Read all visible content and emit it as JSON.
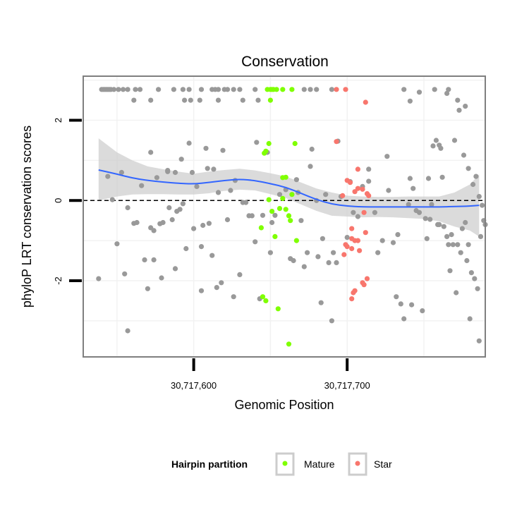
{
  "chart_data": {
    "type": "scatter",
    "title": "Conservation",
    "xlabel": "Genomic Position",
    "ylabel": "phyloP LRT conservation scores",
    "xlim": [
      30717528,
      30717790
    ],
    "ylim": [
      -3.9,
      3.1
    ],
    "x_ticks": [
      {
        "value": 30717600,
        "label": "30,717,600"
      },
      {
        "value": 30717700,
        "label": "30,717,700"
      }
    ],
    "y_ticks": [
      {
        "value": -2,
        "label": "-2"
      },
      {
        "value": 0,
        "label": "0"
      },
      {
        "value": 2,
        "label": "2"
      }
    ],
    "y_minor_gridlines": [
      -3,
      -1,
      1,
      3
    ],
    "x_minor_gridlines": [
      30717550,
      30717650,
      30717750
    ],
    "reference_line": {
      "y": 0,
      "style": "dashed"
    },
    "colors": {
      "background_point": "#999999",
      "Mature": "#7FFF00",
      "Star": "#F8766D",
      "smooth_line": "#3366FF",
      "ribbon": "#cccccc",
      "panel_border": "#7f7f7f",
      "grid": "#f2f2f2"
    },
    "legend": {
      "title": "Hairpin partition",
      "placement": "bottom",
      "entries": [
        {
          "name": "Mature",
          "color": "#7FFF00"
        },
        {
          "name": "Star",
          "color": "#F8766D"
        }
      ]
    },
    "smooth": {
      "x": [
        30717538,
        30717550,
        30717560,
        30717570,
        30717580,
        30717590,
        30717600,
        30717610,
        30717620,
        30717630,
        30717640,
        30717650,
        30717660,
        30717670,
        30717680,
        30717690,
        30717700,
        30717710,
        30717720,
        30717730,
        30717740,
        30717750,
        30717760,
        30717770,
        30717780,
        30717786
      ],
      "fit": [
        0.76,
        0.66,
        0.56,
        0.5,
        0.46,
        0.43,
        0.41,
        0.45,
        0.5,
        0.53,
        0.5,
        0.42,
        0.33,
        0.18,
        0.02,
        -0.09,
        -0.14,
        -0.16,
        -0.16,
        -0.16,
        -0.16,
        -0.16,
        -0.16,
        -0.15,
        -0.14,
        -0.12
      ],
      "upper": [
        1.55,
        1.2,
        1.0,
        0.85,
        0.78,
        0.72,
        0.67,
        0.72,
        0.76,
        0.79,
        0.75,
        0.68,
        0.6,
        0.45,
        0.3,
        0.2,
        0.12,
        0.1,
        0.09,
        0.09,
        0.1,
        0.1,
        0.1,
        0.2,
        0.4,
        0.65
      ],
      "lower": [
        0.0,
        0.1,
        0.15,
        0.16,
        0.16,
        0.15,
        0.15,
        0.18,
        0.24,
        0.27,
        0.25,
        0.16,
        0.06,
        -0.1,
        -0.26,
        -0.38,
        -0.4,
        -0.42,
        -0.41,
        -0.42,
        -0.44,
        -0.46,
        -0.52,
        -0.65,
        -0.75,
        -0.9
      ]
    },
    "series": [
      {
        "name": "Other",
        "color": "#999999",
        "points": [
          [
            30717540,
            2.77
          ],
          [
            30717541,
            2.77
          ],
          [
            30717542,
            2.77
          ],
          [
            30717543,
            2.77
          ],
          [
            30717544,
            2.77
          ],
          [
            30717545,
            2.77
          ],
          [
            30717546,
            2.77
          ],
          [
            30717548,
            2.77
          ],
          [
            30717551,
            2.77
          ],
          [
            30717554,
            2.77
          ],
          [
            30717557,
            2.77
          ],
          [
            30717562,
            2.77
          ],
          [
            30717565,
            2.77
          ],
          [
            30717577,
            2.77
          ],
          [
            30717587,
            2.77
          ],
          [
            30717593,
            2.77
          ],
          [
            30717597,
            2.77
          ],
          [
            30717605,
            2.77
          ],
          [
            30717612,
            2.77
          ],
          [
            30717614,
            2.77
          ],
          [
            30717616,
            2.77
          ],
          [
            30717620,
            2.77
          ],
          [
            30717622,
            2.77
          ],
          [
            30717626,
            2.77
          ],
          [
            30717630,
            2.77
          ],
          [
            30717640,
            2.77
          ],
          [
            30717672,
            2.77
          ],
          [
            30717676,
            2.77
          ],
          [
            30717680,
            2.77
          ],
          [
            30717690,
            2.77
          ],
          [
            30717737,
            2.77
          ],
          [
            30717757,
            2.77
          ],
          [
            30717766,
            2.77
          ],
          [
            30717561,
            2.5
          ],
          [
            30717572,
            2.5
          ],
          [
            30717594,
            2.5
          ],
          [
            30717598,
            2.5
          ],
          [
            30717604,
            2.5
          ],
          [
            30717616,
            2.5
          ],
          [
            30717632,
            2.5
          ],
          [
            30717642,
            2.5
          ],
          [
            30717772,
            2.5
          ],
          [
            30717773,
            2.25
          ],
          [
            30717741,
            2.48
          ],
          [
            30717747,
            2.7
          ],
          [
            30717777,
            2.35
          ],
          [
            30717765,
            2.67
          ],
          [
            30717538,
            -1.95
          ],
          [
            30717544,
            0.6
          ],
          [
            30717547,
            0.02
          ],
          [
            30717550,
            -1.08
          ],
          [
            30717553,
            0.7
          ],
          [
            30717555,
            -1.83
          ],
          [
            30717557,
            -3.25
          ],
          [
            30717557,
            -0.18
          ],
          [
            30717561,
            -0.57
          ],
          [
            30717563,
            -0.55
          ],
          [
            30717566,
            0.37
          ],
          [
            30717568,
            -1.48
          ],
          [
            30717570,
            -2.2
          ],
          [
            30717572,
            1.2
          ],
          [
            30717572,
            -0.68
          ],
          [
            30717574,
            -1.48
          ],
          [
            30717574,
            -0.75
          ],
          [
            30717576,
            0.57
          ],
          [
            30717578,
            -0.58
          ],
          [
            30717579,
            -1.93
          ],
          [
            30717580,
            -0.55
          ],
          [
            30717583,
            0.75
          ],
          [
            30717583,
            0.72
          ],
          [
            30717584,
            -0.18
          ],
          [
            30717586,
            -0.48
          ],
          [
            30717588,
            -1.7
          ],
          [
            30717588,
            0.7
          ],
          [
            30717589,
            -0.27
          ],
          [
            30717591,
            -0.22
          ],
          [
            30717592,
            1.03
          ],
          [
            30717593,
            -0.08
          ],
          [
            30717595,
            -1.2
          ],
          [
            30717597,
            1.43
          ],
          [
            30717599,
            0.7
          ],
          [
            30717600,
            -0.7
          ],
          [
            30717602,
            0.35
          ],
          [
            30717605,
            -2.25
          ],
          [
            30717605,
            -1.15
          ],
          [
            30717606,
            -0.62
          ],
          [
            30717608,
            1.3
          ],
          [
            30717609,
            0.8
          ],
          [
            30717610,
            -0.57
          ],
          [
            30717612,
            -1.37
          ],
          [
            30717613,
            0.78
          ],
          [
            30717615,
            -2.17
          ],
          [
            30717616,
            0.2
          ],
          [
            30717618,
            -2.05
          ],
          [
            30717619,
            1.25
          ],
          [
            30717622,
            -0.48
          ],
          [
            30717624,
            0.25
          ],
          [
            30717626,
            -2.4
          ],
          [
            30717627,
            0.5
          ],
          [
            30717630,
            -1.85
          ],
          [
            30717632,
            -0.05
          ],
          [
            30717634,
            -0.05
          ],
          [
            30717636,
            -0.38
          ],
          [
            30717638,
            -0.38
          ],
          [
            30717640,
            -1.03
          ],
          [
            30717641,
            1.45
          ],
          [
            30717643,
            -2.45
          ],
          [
            30717645,
            -0.37
          ],
          [
            30717648,
            1.2
          ],
          [
            30717650,
            -1.3
          ],
          [
            30717651,
            -0.55
          ],
          [
            30717653,
            -0.37
          ],
          [
            30717656,
            0.15
          ],
          [
            30717660,
            0.27
          ],
          [
            30717663,
            -1.45
          ],
          [
            30717665,
            -1.5
          ],
          [
            30717667,
            0.52
          ],
          [
            30717668,
            0.2
          ],
          [
            30717670,
            -0.5
          ],
          [
            30717672,
            -1.65
          ],
          [
            30717674,
            -1.3
          ],
          [
            30717676,
            0.85
          ],
          [
            30717677,
            1.28
          ],
          [
            30717680,
            0.0
          ],
          [
            30717681,
            -1.4
          ],
          [
            30717683,
            -2.55
          ],
          [
            30717684,
            -0.95
          ],
          [
            30717686,
            0.15
          ],
          [
            30717688,
            -1.55
          ],
          [
            30717690,
            -3.0
          ],
          [
            30717691,
            -1.3
          ],
          [
            30717693,
            -1.55
          ],
          [
            30717694,
            1.48
          ],
          [
            30717696,
            0.1
          ],
          [
            30717700,
            -0.92
          ],
          [
            30717702,
            0.47
          ],
          [
            30717704,
            -0.3
          ],
          [
            30717707,
            -0.4
          ],
          [
            30717710,
            0.35
          ],
          [
            30717714,
            0.48
          ],
          [
            30717714,
            0.78
          ],
          [
            30717718,
            -0.3
          ],
          [
            30717720,
            -1.3
          ],
          [
            30717723,
            -1.0
          ],
          [
            30717726,
            1.1
          ],
          [
            30717727,
            0.25
          ],
          [
            30717730,
            -1.05
          ],
          [
            30717732,
            -2.4
          ],
          [
            30717733,
            -0.85
          ],
          [
            30717735,
            -2.58
          ],
          [
            30717737,
            -2.95
          ],
          [
            30717740,
            -0.1
          ],
          [
            30717741,
            0.55
          ],
          [
            30717742,
            -2.6
          ],
          [
            30717743,
            0.3
          ],
          [
            30717745,
            -0.25
          ],
          [
            30717747,
            -0.3
          ],
          [
            30717749,
            -2.75
          ],
          [
            30717751,
            -0.45
          ],
          [
            30717752,
            -0.95
          ],
          [
            30717753,
            0.55
          ],
          [
            30717754,
            -0.47
          ],
          [
            30717755,
            -0.1
          ],
          [
            30717756,
            1.36
          ],
          [
            30717758,
            1.5
          ],
          [
            30717759,
            -0.6
          ],
          [
            30717760,
            -0.6
          ],
          [
            30717760,
            1.38
          ],
          [
            30717761,
            1.3
          ],
          [
            30717762,
            0.58
          ],
          [
            30717763,
            -0.65
          ],
          [
            30717765,
            -0.9
          ],
          [
            30717766,
            -1.1
          ],
          [
            30717767,
            -1.75
          ],
          [
            30717768,
            -0.85
          ],
          [
            30717769,
            -1.1
          ],
          [
            30717770,
            1.5
          ],
          [
            30717771,
            -2.3
          ],
          [
            30717772,
            -1.1
          ],
          [
            30717774,
            -1.3
          ],
          [
            30717775,
            -0.7
          ],
          [
            30717776,
            1.13
          ],
          [
            30717777,
            -0.55
          ],
          [
            30717778,
            -1.5
          ],
          [
            30717779,
            -1.1
          ],
          [
            30717779,
            0.8
          ],
          [
            30717780,
            -2.95
          ],
          [
            30717781,
            -1.8
          ],
          [
            30717782,
            0.4
          ],
          [
            30717783,
            -1.95
          ],
          [
            30717784,
            0.6
          ],
          [
            30717785,
            -2.2
          ],
          [
            30717786,
            -3.5
          ],
          [
            30717786,
            0.1
          ],
          [
            30717787,
            -0.9
          ],
          [
            30717788,
            -0.12
          ],
          [
            30717789,
            -0.5
          ],
          [
            30717790,
            -0.6
          ]
        ]
      },
      {
        "name": "Mature",
        "color": "#7FFF00",
        "points": [
          [
            30717648,
            2.77
          ],
          [
            30717650,
            2.77
          ],
          [
            30717651,
            2.77
          ],
          [
            30717652,
            2.77
          ],
          [
            30717654,
            2.77
          ],
          [
            30717658,
            2.77
          ],
          [
            30717664,
            2.77
          ],
          [
            30717650,
            2.5
          ],
          [
            30717649,
            1.42
          ],
          [
            30717647,
            1.23
          ],
          [
            30717646,
            1.18
          ],
          [
            30717666,
            1.42
          ],
          [
            30717658,
            0.57
          ],
          [
            30717660,
            0.58
          ],
          [
            30717664,
            0.15
          ],
          [
            30717658,
            0.05
          ],
          [
            30717649,
            0.02
          ],
          [
            30717651,
            -0.27
          ],
          [
            30717656,
            -0.2
          ],
          [
            30717660,
            -0.22
          ],
          [
            30717644,
            -0.68
          ],
          [
            30717653,
            -0.9
          ],
          [
            30717662,
            -0.38
          ],
          [
            30717667,
            -1.0
          ],
          [
            30717645,
            -2.4
          ],
          [
            30717647,
            -2.5
          ],
          [
            30717655,
            -2.7
          ],
          [
            30717662,
            -3.58
          ],
          [
            30717663,
            -0.5
          ]
        ]
      },
      {
        "name": "Star",
        "color": "#F8766D",
        "points": [
          [
            30717693,
            2.77
          ],
          [
            30717699,
            2.77
          ],
          [
            30717712,
            2.45
          ],
          [
            30717693,
            1.47
          ],
          [
            30717707,
            0.78
          ],
          [
            30717700,
            0.5
          ],
          [
            30717702,
            0.45
          ],
          [
            30717705,
            0.22
          ],
          [
            30717707,
            0.3
          ],
          [
            30717710,
            0.28
          ],
          [
            30717713,
            0.17
          ],
          [
            30717714,
            0.12
          ],
          [
            30717697,
            0.12
          ],
          [
            30717711,
            -0.3
          ],
          [
            30717703,
            -0.7
          ],
          [
            30717705,
            -1.0
          ],
          [
            30717703,
            -1.2
          ],
          [
            30717700,
            -1.15
          ],
          [
            30717703,
            -0.95
          ],
          [
            30717707,
            -1.0
          ],
          [
            30717708,
            -1.25
          ],
          [
            30717712,
            -0.8
          ],
          [
            30717703,
            -2.45
          ],
          [
            30717704,
            -2.3
          ],
          [
            30717705,
            -2.25
          ],
          [
            30717710,
            -2.05
          ],
          [
            30717711,
            -2.1
          ],
          [
            30717713,
            -1.95
          ],
          [
            30717698,
            -1.35
          ],
          [
            30717699,
            -1.1
          ]
        ]
      }
    ]
  }
}
